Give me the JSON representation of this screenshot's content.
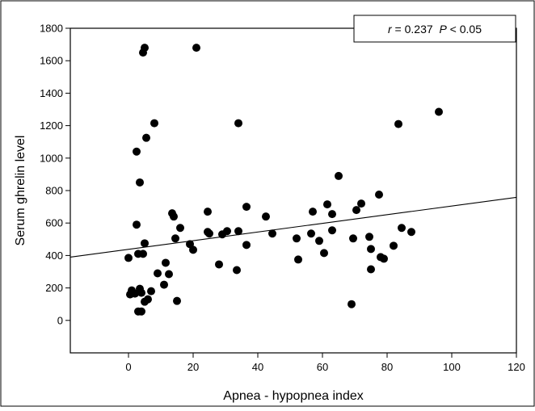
{
  "chart_data": {
    "type": "scatter",
    "title": "",
    "xlabel": "Apnea - hypopnea index",
    "ylabel": "Serum ghrelin level",
    "xlim": [
      -18,
      120
    ],
    "ylim": [
      -200,
      1800
    ],
    "xticks": [
      0,
      20,
      40,
      60,
      80,
      100,
      120
    ],
    "yticks": [
      0,
      200,
      400,
      600,
      800,
      1000,
      1200,
      1400,
      1600,
      1800
    ],
    "grid": false,
    "legend_position": "top-right",
    "annotation": {
      "r_symbol": "r",
      "r_text": " = 0.237  ",
      "p_symbol": "P",
      "p_text": " < 0.05"
    },
    "regression_line": {
      "x": [
        -18,
        120
      ],
      "y": [
        390,
        758
      ]
    },
    "points": {
      "x": [
        0,
        0.5,
        1,
        1.5,
        2,
        2.5,
        3,
        3.5,
        4,
        2.5,
        3,
        4,
        4.5,
        5,
        5,
        5.5,
        6,
        7,
        9,
        3.5,
        4.5,
        5,
        8,
        11,
        11.5,
        12.5,
        13.5,
        14,
        14.5,
        15,
        16,
        19,
        20,
        21,
        24.5,
        24.5,
        25,
        28,
        29,
        30.5,
        33.5,
        34,
        34,
        36.5,
        36.5,
        42.5,
        44.5,
        52,
        52.5,
        56.5,
        57,
        59,
        60.5,
        61.5,
        63,
        63,
        65,
        69,
        69.5,
        70.5,
        72,
        74.5,
        75,
        75,
        77.5,
        78,
        79,
        82,
        83.5,
        84.5,
        87.5,
        96
      ],
      "y": [
        385,
        160,
        185,
        170,
        165,
        590,
        410,
        195,
        170,
        1040,
        55,
        55,
        410,
        475,
        115,
        1125,
        130,
        180,
        290,
        850,
        1650,
        1680,
        1215,
        220,
        355,
        285,
        660,
        640,
        505,
        120,
        570,
        470,
        435,
        1680,
        670,
        545,
        535,
        345,
        530,
        550,
        310,
        550,
        1215,
        700,
        465,
        640,
        535,
        505,
        375,
        535,
        670,
        490,
        415,
        715,
        555,
        655,
        890,
        100,
        505,
        680,
        720,
        515,
        440,
        315,
        775,
        390,
        380,
        460,
        1210,
        570,
        545,
        1285
      ]
    }
  }
}
